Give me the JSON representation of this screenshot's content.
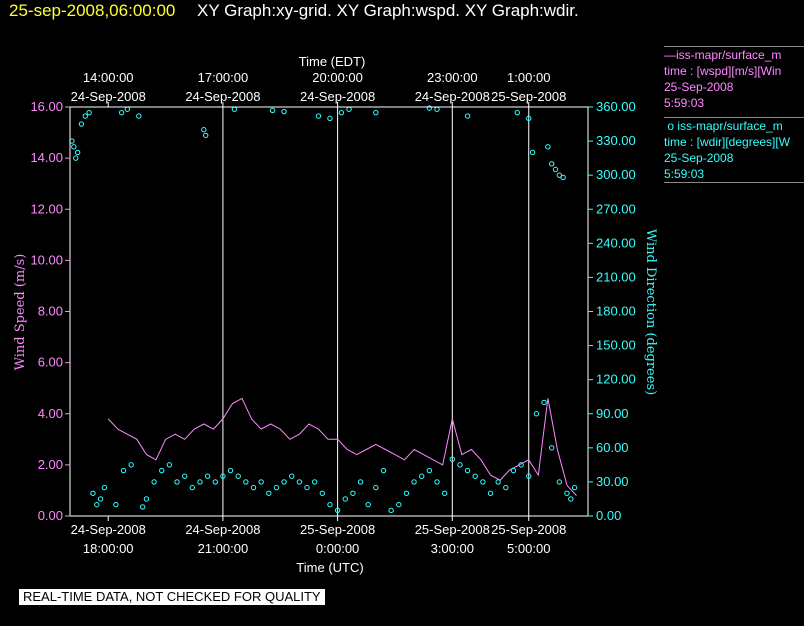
{
  "header": {
    "date_time": "25-sep-2008,06:00:00",
    "graphs": "XY Graph:xy-grid.  XY Graph:wspd.  XY Graph:wdir."
  },
  "chart_data": {
    "type": "line",
    "title": "",
    "top_axis_title": "Time (EDT)",
    "bottom_axis_title": "Time (UTC)",
    "left_axis_title": "Wind Speed (m/s)",
    "right_axis_title": "Wind Direction (degrees)",
    "x_range_hours_utc": [
      -1,
      12.55
    ],
    "top_ticks": [
      {
        "h": 0,
        "line1": "14:00:00",
        "line2": "24-Sep-2008"
      },
      {
        "h": 3,
        "line1": "17:00:00",
        "line2": "24-Sep-2008"
      },
      {
        "h": 6,
        "line1": "20:00:00",
        "line2": "24-Sep-2008"
      },
      {
        "h": 9,
        "line1": "23:00:00",
        "line2": "24-Sep-2008"
      },
      {
        "h": 11,
        "line1": "1:00:00",
        "line2": "25-Sep-2008"
      }
    ],
    "bottom_ticks": [
      {
        "h": 0,
        "line1": "24-Sep-2008",
        "line2": "18:00:00"
      },
      {
        "h": 3,
        "line1": "24-Sep-2008",
        "line2": "21:00:00"
      },
      {
        "h": 6,
        "line1": "25-Sep-2008",
        "line2": "0:00:00"
      },
      {
        "h": 9,
        "line1": "25-Sep-2008",
        "line2": "3:00:00"
      },
      {
        "h": 11,
        "line1": "25-Sep-2008",
        "line2": "5:00:00"
      }
    ],
    "grid_x_hours": [
      3,
      6,
      9,
      11
    ],
    "left_axis": {
      "min": 0,
      "max": 16,
      "ticks": [
        "0.00",
        "2.00",
        "4.00",
        "6.00",
        "8.00",
        "10.00",
        "12.00",
        "14.00",
        "16.00"
      ]
    },
    "right_axis": {
      "min": 0,
      "max": 360,
      "ticks": [
        "0.00",
        "30.00",
        "60.00",
        "90.00",
        "120.00",
        "150.00",
        "180.00",
        "210.00",
        "240.00",
        "270.00",
        "300.00",
        "330.00",
        "360.00"
      ]
    },
    "series": [
      {
        "name": "iss-mapr/surface_m",
        "kind": "line",
        "axis": "left",
        "color": "#ff88ff",
        "x": [
          0,
          0.25,
          0.5,
          0.75,
          1,
          1.25,
          1.5,
          1.75,
          2,
          2.25,
          2.5,
          2.75,
          3,
          3.25,
          3.5,
          3.75,
          4,
          4.25,
          4.5,
          4.75,
          5,
          5.25,
          5.5,
          5.75,
          6,
          6.25,
          6.5,
          6.75,
          7,
          7.25,
          7.5,
          7.75,
          8,
          8.25,
          8.5,
          8.75,
          9,
          9.25,
          9.5,
          9.75,
          10,
          10.25,
          10.5,
          10.75,
          11,
          11.25,
          11.5,
          11.75,
          12,
          12.25
        ],
        "values": [
          3.8,
          3.4,
          3.2,
          3.0,
          2.4,
          2.2,
          3.0,
          3.2,
          3.0,
          3.4,
          3.6,
          3.4,
          3.8,
          4.4,
          4.6,
          3.8,
          3.4,
          3.6,
          3.4,
          3.0,
          3.2,
          3.6,
          3.4,
          3.0,
          3.0,
          2.6,
          2.4,
          2.6,
          2.8,
          2.6,
          2.4,
          2.2,
          2.6,
          2.4,
          2.2,
          2.0,
          3.8,
          2.4,
          2.6,
          2.2,
          1.6,
          1.4,
          1.8,
          2.0,
          2.2,
          1.6,
          4.6,
          2.6,
          1.2,
          0.8
        ]
      },
      {
        "name": "iss-mapr/surface_m",
        "kind": "scatter",
        "axis": "right",
        "color": "#33ffff",
        "x": [
          -0.95,
          -0.9,
          -0.85,
          -0.8,
          -0.7,
          -0.6,
          -0.5,
          -0.4,
          -0.3,
          -0.2,
          -0.1,
          0.2,
          0.4,
          0.6,
          0.9,
          1.0,
          1.2,
          1.4,
          1.6,
          1.8,
          2.0,
          2.2,
          2.4,
          2.6,
          2.8,
          3.0,
          3.2,
          3.4,
          3.6,
          3.8,
          4.0,
          4.2,
          4.4,
          4.6,
          4.8,
          5.0,
          5.2,
          5.4,
          5.6,
          5.8,
          6.0,
          6.2,
          6.4,
          6.6,
          6.8,
          7.0,
          7.2,
          7.4,
          7.6,
          7.8,
          8.0,
          8.2,
          8.4,
          8.6,
          8.8,
          9.0,
          9.2,
          9.4,
          9.6,
          9.8,
          10.0,
          10.2,
          10.4,
          10.6,
          10.8,
          11.0,
          11.2,
          11.4,
          11.6,
          11.8,
          12.0,
          12.1,
          12.2,
          0.35,
          0.5,
          0.8,
          2.5,
          2.55,
          3.3,
          4.3,
          4.6,
          5.5,
          5.8,
          6.1,
          6.3,
          7.0,
          8.4,
          8.6,
          9.4,
          10.7,
          11.0,
          11.1,
          11.5,
          11.6,
          11.7,
          11.8,
          11.9
        ],
        "values": [
          330,
          325,
          315,
          320,
          345,
          352,
          355,
          20,
          10,
          15,
          25,
          10,
          40,
          45,
          8,
          15,
          30,
          40,
          45,
          30,
          35,
          25,
          30,
          35,
          30,
          35,
          40,
          35,
          30,
          25,
          30,
          20,
          25,
          30,
          35,
          30,
          25,
          30,
          20,
          10,
          5,
          15,
          20,
          30,
          10,
          25,
          40,
          5,
          10,
          20,
          30,
          35,
          40,
          30,
          20,
          50,
          45,
          40,
          35,
          30,
          20,
          30,
          25,
          40,
          45,
          35,
          90,
          100,
          60,
          30,
          20,
          15,
          25,
          355,
          358,
          352,
          340,
          335,
          358,
          357,
          356,
          352,
          350,
          355,
          358,
          355,
          359,
          358,
          352,
          355,
          350,
          320,
          325,
          310,
          305,
          300,
          298
        ]
      }
    ],
    "legend": [
      {
        "symbol": "line",
        "name": "iss-mapr/surface_m",
        "var": "time : [wspd][m/s][Win",
        "date": "25-Sep-2008",
        "time": "5:59:03"
      },
      {
        "symbol": "circle",
        "name": "iss-mapr/surface_m",
        "var": "time : [wdir][degrees][W",
        "date": "25-Sep-2008",
        "time": "5:59:03"
      }
    ]
  },
  "footer": {
    "notice": "REAL-TIME DATA, NOT CHECKED FOR QUALITY"
  },
  "colors": {
    "speed": "#ff88ff",
    "direction": "#33ffff",
    "frame": "#ffffff",
    "header_date": "#ffff33"
  }
}
